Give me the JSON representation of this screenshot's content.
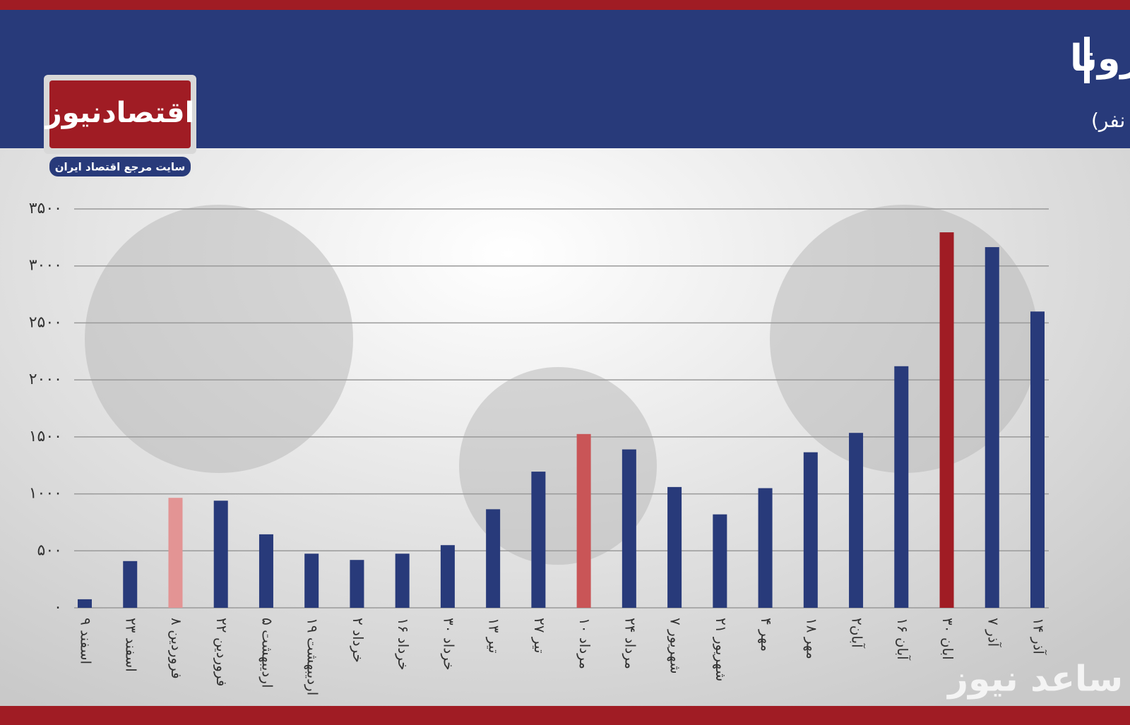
{
  "chart_data": {
    "type": "bar",
    "title": "روند میزان فوتی های هفتگی کرونا",
    "subtitle": "(واحد: نفر)",
    "logo": "اقتصادنیوز",
    "logo_tagline": "سایت مرجع اقتصاد ایران",
    "watermark": "ساعد نیوز",
    "categories": [
      "۹ اسفند",
      "۲۳ اسفند",
      "۸ فروردین",
      "۲۲ فروردین",
      "۵ اردیبهشت",
      "۱۹ اردیبهشت",
      "۲ خرداد",
      "۱۶ خرداد",
      "۳۰ خرداد",
      "۱۳ تیر",
      "۲۷ تیر",
      "۱۰ مرداد",
      "۲۴ مرداد",
      "۷ شهریور",
      "۲۱ شهریور",
      "۴ مهر",
      "۱۸ مهر",
      "۲آبان",
      "۱۶ آبان",
      "۳۰ ابان",
      "۷ آذر",
      "۱۴ آذر"
    ],
    "values": [
      75,
      410,
      965,
      940,
      645,
      475,
      420,
      475,
      550,
      865,
      1195,
      1525,
      1390,
      1060,
      820,
      1050,
      1365,
      1535,
      2120,
      3295,
      3165,
      2600
    ],
    "colors": [
      "#283a7a",
      "#283a7a",
      "#e39494",
      "#283a7a",
      "#283a7a",
      "#283a7a",
      "#283a7a",
      "#283a7a",
      "#283a7a",
      "#283a7a",
      "#283a7a",
      "#c95557",
      "#283a7a",
      "#283a7a",
      "#283a7a",
      "#283a7a",
      "#283a7a",
      "#283a7a",
      "#283a7a",
      "#a01c24",
      "#283a7a",
      "#283a7a"
    ],
    "ylim": [
      0,
      3500
    ],
    "yticks": [
      {
        "value": 0,
        "label": "۰"
      },
      {
        "value": 500,
        "label": "۵۰۰"
      },
      {
        "value": 1000,
        "label": "۱۰۰۰"
      },
      {
        "value": 1500,
        "label": "۱۵۰۰"
      },
      {
        "value": 2000,
        "label": "۲۰۰۰"
      },
      {
        "value": 2500,
        "label": "۲۵۰۰"
      },
      {
        "value": 3000,
        "label": "۳۰۰۰"
      },
      {
        "value": 3500,
        "label": "۳۵۰۰"
      }
    ],
    "grid": true
  }
}
